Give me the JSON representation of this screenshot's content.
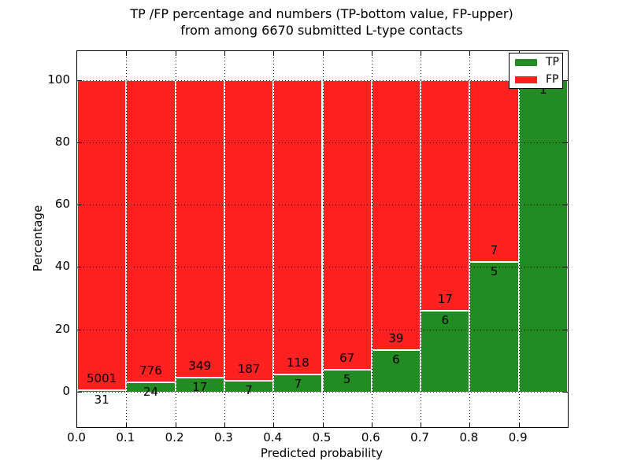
{
  "title": {
    "line1": "TP /FP percentage and numbers (TP-bottom value, FP-upper)",
    "line2": "from among 6670 submitted L-type contacts"
  },
  "legend": {
    "position": "upper right",
    "items": [
      {
        "label": "TP",
        "color": "#228B22"
      },
      {
        "label": "FP",
        "color": "#FF2020"
      }
    ]
  },
  "chart_data": {
    "type": "bar",
    "subtype": "stacked-100-percent",
    "title": "TP /FP percentage and numbers (TP-bottom value, FP-upper) from among 6670 submitted L-type contacts",
    "xlabel": "Predicted probability",
    "ylabel": "Percentage",
    "total_contacts": 6670,
    "categories": [
      "0.0-0.1",
      "0.1-0.2",
      "0.2-0.3",
      "0.3-0.4",
      "0.4-0.5",
      "0.5-0.6",
      "0.6-0.7",
      "0.7-0.8",
      "0.8-0.9",
      "0.9-1.0"
    ],
    "bin_edges": [
      0.0,
      0.1,
      0.2,
      0.3,
      0.4,
      0.5,
      0.6,
      0.7,
      0.8,
      0.9,
      1.0
    ],
    "series": [
      {
        "name": "TP",
        "color": "#228B22",
        "counts": [
          31,
          24,
          17,
          7,
          7,
          5,
          6,
          6,
          5,
          1
        ]
      },
      {
        "name": "FP",
        "color": "#FF2020",
        "counts": [
          5001,
          776,
          349,
          187,
          118,
          67,
          39,
          17,
          7,
          0
        ]
      }
    ],
    "tp_percent_of_bin": [
      0.62,
      3.0,
      4.65,
      3.61,
      5.6,
      6.94,
      13.33,
      26.09,
      41.67,
      100.0
    ],
    "x_tick_labels": [
      "0.0",
      "0.1",
      "0.2",
      "0.3",
      "0.4",
      "0.5",
      "0.6",
      "0.7",
      "0.8",
      "0.9"
    ],
    "y_ticks": [
      0,
      20,
      40,
      60,
      80,
      100
    ],
    "y_tick_labels": [
      "0",
      "20",
      "40",
      "60",
      "80",
      "100"
    ],
    "ylim": [
      -11.3,
      109.2
    ],
    "grid": "dotted",
    "legend_position": "upper right"
  }
}
